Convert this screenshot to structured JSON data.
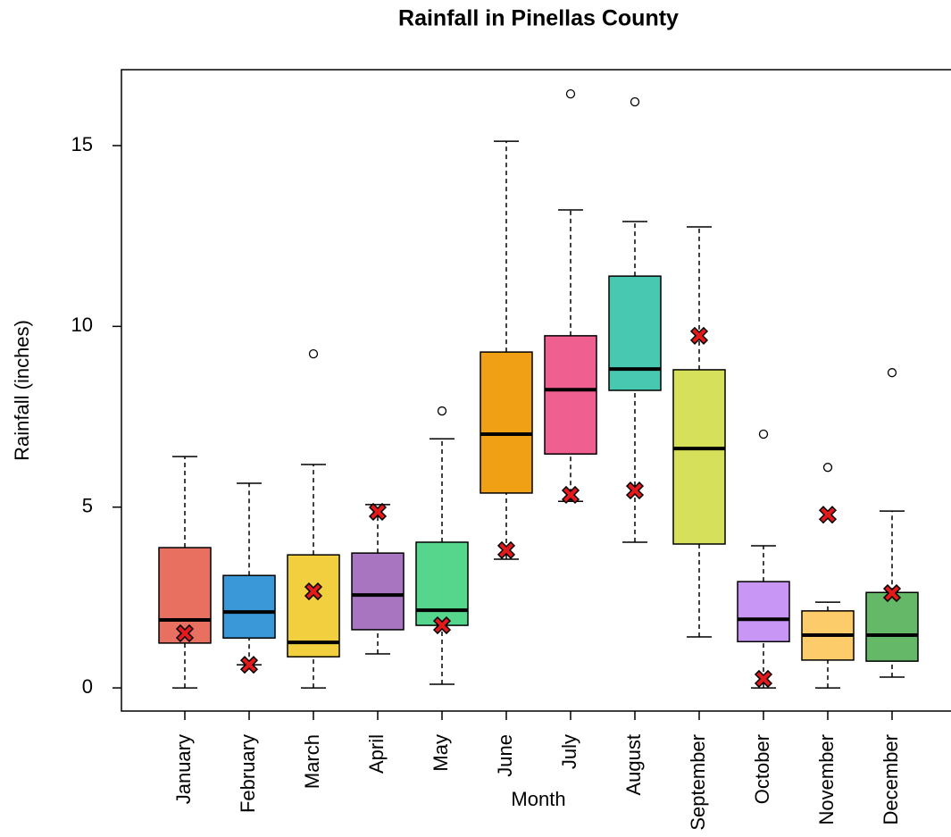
{
  "chart_data": {
    "type": "boxplot",
    "title": "Rainfall in Pinellas County",
    "x_label": "Month",
    "y_label": "Rainfall (inches)",
    "categories": [
      "January",
      "February",
      "March",
      "April",
      "May",
      "June",
      "July",
      "August",
      "September",
      "October",
      "November",
      "December"
    ],
    "boxes": [
      {
        "whisker_low": 0,
        "q1": 1.24,
        "median": 1.88,
        "q3": 3.88,
        "whisker_high": 6.4,
        "outliers": [],
        "mean": 1.51,
        "color": "#e87060"
      },
      {
        "whisker_low": 0.64,
        "q1": 1.38,
        "median": 2.1,
        "q3": 3.11,
        "whisker_high": 5.66,
        "outliers": [],
        "mean": 0.64,
        "color": "#3a98d8"
      },
      {
        "whisker_low": 0,
        "q1": 0.86,
        "median": 1.26,
        "q3": 3.68,
        "whisker_high": 6.18,
        "outliers": [
          9.24
        ],
        "mean": 2.67,
        "color": "#f2cf3e"
      },
      {
        "whisker_low": 0.94,
        "q1": 1.61,
        "median": 2.57,
        "q3": 3.73,
        "whisker_high": 5.07,
        "outliers": [],
        "mean": 4.87,
        "color": "#a876c0"
      },
      {
        "whisker_low": 0.1,
        "q1": 1.73,
        "median": 2.15,
        "q3": 4.03,
        "whisker_high": 6.89,
        "outliers": [
          7.66
        ],
        "mean": 1.73,
        "color": "#56d68c"
      },
      {
        "whisker_low": 3.56,
        "q1": 5.39,
        "median": 7.02,
        "q3": 9.29,
        "whisker_high": 15.12,
        "outliers": [],
        "mean": 3.81,
        "color": "#f0a014"
      },
      {
        "whisker_low": 5.16,
        "q1": 6.47,
        "median": 8.25,
        "q3": 9.74,
        "whisker_high": 13.22,
        "outliers": [
          16.43
        ],
        "mean": 5.34,
        "color": "#ef6090"
      },
      {
        "whisker_low": 4.03,
        "q1": 8.23,
        "median": 8.82,
        "q3": 11.39,
        "whisker_high": 12.9,
        "outliers": [
          16.21
        ],
        "mean": 5.46,
        "color": "#48c8b0"
      },
      {
        "whisker_low": 1.41,
        "q1": 3.98,
        "median": 6.62,
        "q3": 8.8,
        "whisker_high": 12.75,
        "outliers": [],
        "mean": 9.74,
        "color": "#d6e05a"
      },
      {
        "whisker_low": 0,
        "q1": 1.28,
        "median": 1.9,
        "q3": 2.94,
        "whisker_high": 3.93,
        "outliers": [
          7.02
        ],
        "mean": 0.25,
        "color": "#c896f4"
      },
      {
        "whisker_low": 0,
        "q1": 0.77,
        "median": 1.46,
        "q3": 2.13,
        "whisker_high": 2.37,
        "outliers": [
          6.1
        ],
        "mean": 4.79,
        "color": "#fccc6a"
      },
      {
        "whisker_low": 0.3,
        "q1": 0.74,
        "median": 1.46,
        "q3": 2.64,
        "whisker_high": 4.89,
        "outliers": [
          8.72
        ],
        "mean": 2.62,
        "color": "#64b868"
      }
    ],
    "ylim": [
      -0.64,
      17.1
    ],
    "yticks": [
      0,
      5,
      10,
      15
    ]
  }
}
